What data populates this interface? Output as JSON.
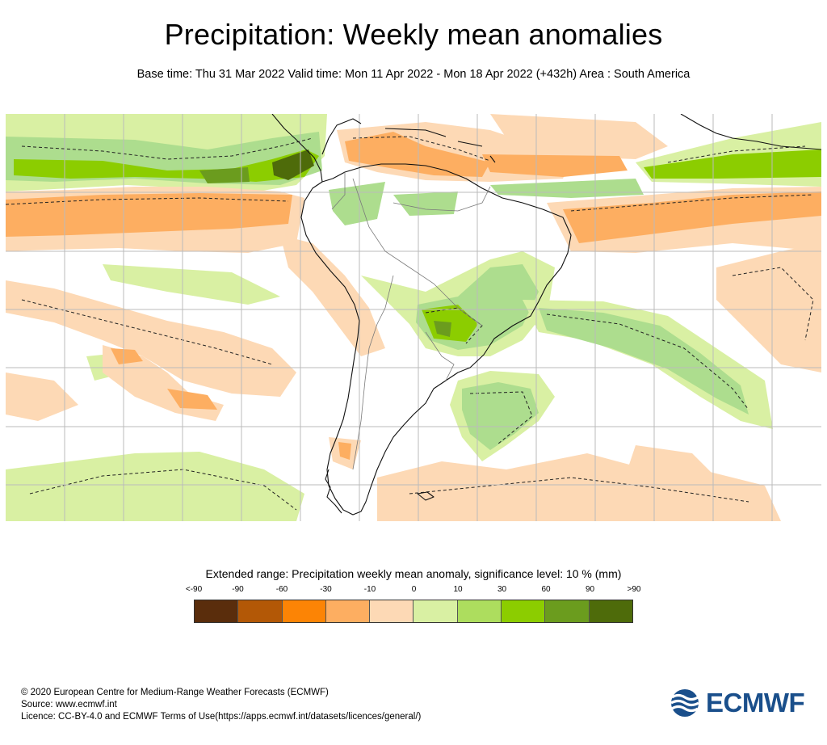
{
  "header": {
    "title": "Precipitation: Weekly mean anomalies",
    "subtitle": "Base time: Thu 31 Mar 2022 Valid time: Mon 11 Apr 2022 - Mon 18 Apr 2022 (+432h) Area : South America"
  },
  "map": {
    "region": "South America",
    "colors": {
      "dry_light": "#fdd9b5",
      "dry_mid": "#fdae61",
      "wet_light": "#d9f0a3",
      "wet_mid": "#addd8e",
      "wet_strong": "#8ccd00",
      "wet_darker": "#6b9c1e",
      "coast": "#000000",
      "border": "#7a7a7a",
      "grid": "#bbbbbb"
    }
  },
  "legend": {
    "title": "Extended range: Precipitation weekly mean anomaly, significance level: 10 % (mm)",
    "ticks": [
      "<-90",
      "-90",
      "-60",
      "-30",
      "-10",
      "0",
      "10",
      "30",
      "60",
      "90",
      ">90"
    ],
    "colors": [
      "#5a2d0c",
      "#b35806",
      "#fc8405",
      "#fdae61",
      "#fdd9b5",
      "#d9f0a3",
      "#addd5e",
      "#8ccd00",
      "#6b9c1e",
      "#4e6b0a"
    ]
  },
  "footer": {
    "copyright": "© 2020 European Centre for Medium-Range Weather Forecasts (ECMWF)",
    "source": "Source: www.ecmwf.int",
    "licence": "Licence: CC-BY-4.0 and ECMWF Terms of Use(https://apps.ecmwf.int/datasets/licences/general/)"
  },
  "logo": {
    "text": "ECMWF",
    "icon": "ecmwf-logo-icon",
    "color": "#1a4f8b"
  }
}
